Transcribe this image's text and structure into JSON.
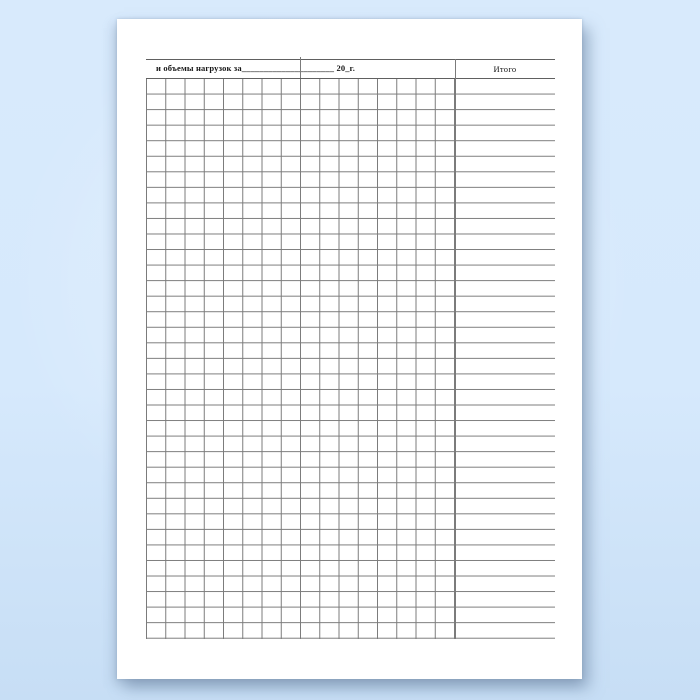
{
  "scene": {
    "background_color": "#d6e9fc",
    "paper_color": "#ffffff"
  },
  "form": {
    "title_line": "и объемы нагрузок за_____________________ 20_г.",
    "table": {
      "totals_header": "Итого",
      "grid_columns": 16,
      "grid_rows": 36,
      "header_blank_sections": 2
    },
    "colors": {
      "grid_line": "#7b7b7b",
      "border_line": "#606060",
      "text": "#171717"
    }
  }
}
